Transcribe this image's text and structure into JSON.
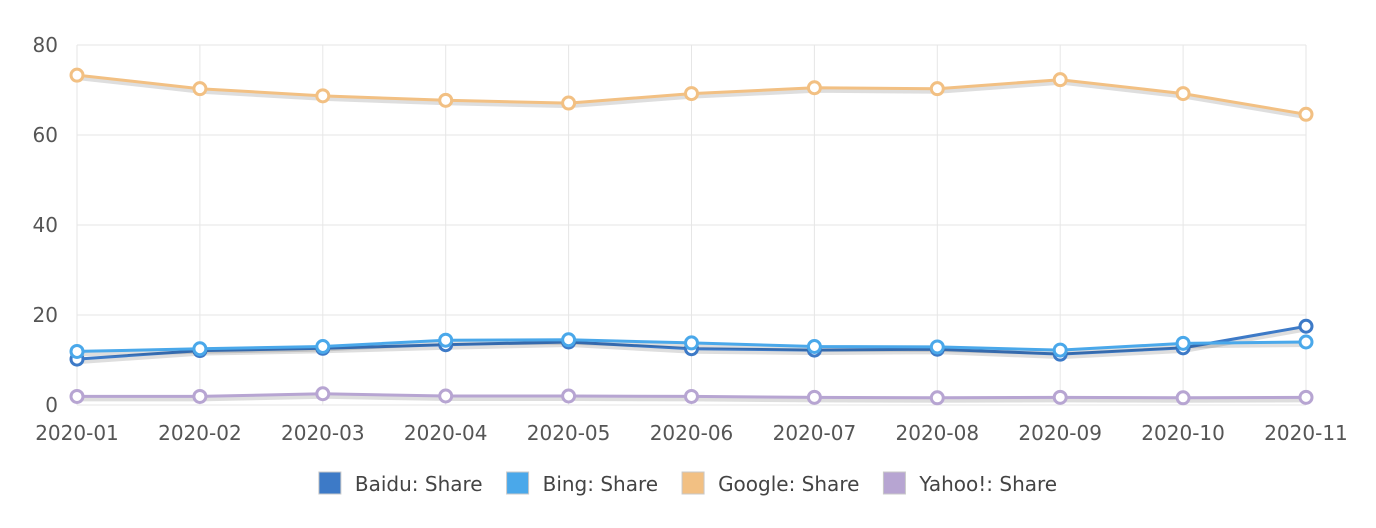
{
  "chart_data": {
    "type": "line",
    "title": "",
    "xlabel": "",
    "ylabel": "",
    "ylim": [
      0,
      80
    ],
    "yticks": [
      "0",
      "20",
      "40",
      "60",
      "80"
    ],
    "categories": [
      "2020-01",
      "2020-02",
      "2020-03",
      "2020-04",
      "2020-05",
      "2020-06",
      "2020-07",
      "2020-08",
      "2020-09",
      "2020-10",
      "2020-11"
    ],
    "grid": true,
    "legend_position": "bottom",
    "series": [
      {
        "name": "Baidu: Share",
        "color": "#3d7ac7",
        "values": [
          10.2,
          12.1,
          12.6,
          13.4,
          14.0,
          12.5,
          12.2,
          12.4,
          11.3,
          12.7,
          17.5
        ]
      },
      {
        "name": "Bing: Share",
        "color": "#4aa8ea",
        "values": [
          11.9,
          12.5,
          13.0,
          14.4,
          14.5,
          13.8,
          13.0,
          12.9,
          12.2,
          13.7,
          14.0
        ]
      },
      {
        "name": "Google: Share",
        "color": "#f2c083",
        "values": [
          73.3,
          70.3,
          68.7,
          67.7,
          67.1,
          69.2,
          70.5,
          70.3,
          72.3,
          69.2,
          64.6
        ]
      },
      {
        "name": "Yahoo!: Share",
        "color": "#b7a5d2",
        "values": [
          1.9,
          1.9,
          2.5,
          2.0,
          2.0,
          1.9,
          1.7,
          1.6,
          1.7,
          1.6,
          1.7
        ]
      }
    ]
  }
}
